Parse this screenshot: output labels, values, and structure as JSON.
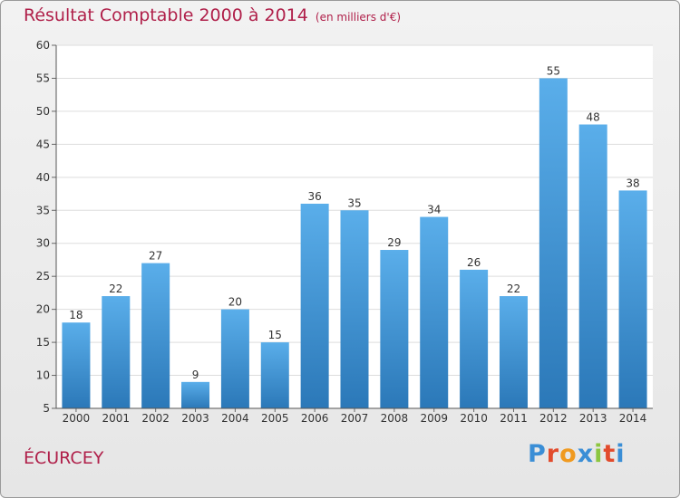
{
  "title": "Résultat Comptable 2000 à 2014",
  "subtitle": "(en milliers d'€)",
  "commune": "ÉCURCEY",
  "logo": {
    "text": "Proxiti",
    "letter_colors": [
      "#3a8ed6",
      "#e24b2c",
      "#f09a20",
      "#3a8ed6",
      "#8cc63f",
      "#e24b2c",
      "#3a8ed6"
    ]
  },
  "colors": {
    "bar_top": "#5aaeea",
    "bar_bottom": "#2b78b8",
    "title": "#b0204a"
  },
  "chart_data": {
    "type": "bar",
    "categories": [
      "2000",
      "2001",
      "2002",
      "2003",
      "2004",
      "2005",
      "2006",
      "2007",
      "2008",
      "2009",
      "2010",
      "2011",
      "2012",
      "2013",
      "2014"
    ],
    "values": [
      18,
      22,
      27,
      9,
      20,
      15,
      36,
      35,
      29,
      34,
      26,
      22,
      55,
      48,
      38
    ],
    "title": "Résultat Comptable 2000 à 2014",
    "subtitle": "(en milliers d'€)",
    "xlabel": "",
    "ylabel": "",
    "ylim": [
      5,
      60
    ],
    "yticks": [
      5,
      10,
      15,
      20,
      25,
      30,
      35,
      40,
      45,
      50,
      55,
      60
    ],
    "grid": true,
    "data_labels": true
  }
}
